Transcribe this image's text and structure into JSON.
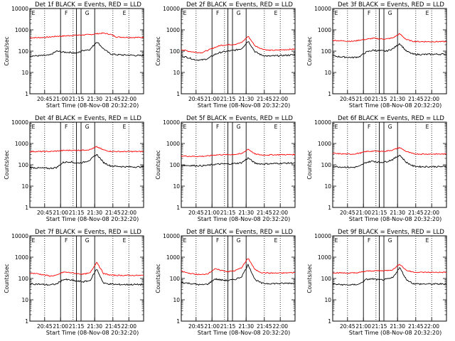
{
  "chart_data": [
    {
      "type": "line",
      "title": "Det 1f BLACK = Events, RED = LLD",
      "ylabel": "Counts/sec",
      "xlabel": "Start Time (08-Nov-08 20:32:20)",
      "x_ticks": [
        "20:45",
        "21:00",
        "21:15",
        "21:30",
        "21:45",
        "22:00"
      ],
      "y_ticks": [
        "1",
        "10",
        "100",
        "1000",
        "10000"
      ],
      "yscale": "log",
      "ylim": [
        1,
        10000
      ],
      "annotations": [
        "E",
        "F",
        "G",
        "E"
      ],
      "grid": "dotted vertical lines",
      "series": [
        {
          "color": "#ff0000",
          "values": [
            430,
            430,
            440,
            460,
            500,
            510,
            540,
            560,
            580,
            600,
            660,
            700,
            620,
            460,
            450,
            440,
            440,
            440
          ]
        },
        {
          "color": "#000000",
          "values": [
            60,
            60,
            62,
            65,
            100,
            90,
            88,
            80,
            110,
            120,
            280,
            130,
            75,
            68,
            66,
            65,
            62,
            62
          ]
        }
      ]
    },
    {
      "type": "line",
      "title": "Det 2f BLACK = Events, RED = LLD",
      "ylabel": "Counts/sec",
      "xlabel": "Start Time (08-Nov-08 20:32:20)",
      "x_ticks": [
        "20:45",
        "21:00",
        "21:15",
        "21:30",
        "21:45",
        "22:00"
      ],
      "y_ticks": [
        "1",
        "10",
        "100",
        "1000",
        "10000"
      ],
      "yscale": "log",
      "ylim": [
        1,
        10000
      ],
      "annotations": [
        "E",
        "F",
        "G",
        "E"
      ],
      "grid": "dotted vertical lines",
      "series": [
        {
          "color": "#ff0000",
          "values": [
            120,
            100,
            90,
            85,
            110,
            150,
            190,
            200,
            210,
            250,
            500,
            180,
            130,
            110,
            110,
            115,
            120,
            125
          ]
        },
        {
          "color": "#000000",
          "values": [
            60,
            50,
            40,
            38,
            45,
            70,
            90,
            100,
            110,
            130,
            300,
            95,
            65,
            58,
            60,
            62,
            65,
            68
          ]
        }
      ]
    },
    {
      "type": "line",
      "title": "Det 3f BLACK = Events, RED = LLD",
      "ylabel": "Counts/sec",
      "xlabel": "Start Time (08-Nov-08 20:32:20)",
      "x_ticks": [
        "20:45",
        "21:00",
        "21:15",
        "21:30",
        "21:45",
        "22:00"
      ],
      "y_ticks": [
        "1",
        "10",
        "100",
        "1000",
        "10000"
      ],
      "yscale": "log",
      "ylim": [
        1,
        10000
      ],
      "annotations": [
        "E",
        "F",
        "G",
        "E"
      ],
      "grid": "dotted vertical lines",
      "series": [
        {
          "color": "#ff0000",
          "values": [
            320,
            310,
            300,
            290,
            330,
            360,
            400,
            380,
            370,
            420,
            650,
            350,
            290,
            280,
            280,
            280,
            280,
            280
          ]
        },
        {
          "color": "#000000",
          "values": [
            60,
            55,
            52,
            50,
            55,
            90,
            110,
            105,
            100,
            130,
            230,
            100,
            72,
            70,
            70,
            72,
            72,
            72
          ]
        }
      ]
    },
    {
      "type": "line",
      "title": "Det 4f BLACK = Events, RED = LLD",
      "ylabel": "Counts/sec",
      "xlabel": "Start Time (08-Nov-08 20:32:20)",
      "x_ticks": [
        "20:45",
        "21:00",
        "21:15",
        "21:30",
        "21:45",
        "22:00"
      ],
      "y_ticks": [
        "1",
        "10",
        "100",
        "1000",
        "10000"
      ],
      "yscale": "log",
      "ylim": [
        1,
        10000
      ],
      "annotations": [
        "E",
        "F",
        "G",
        "E"
      ],
      "grid": "dotted vertical lines",
      "series": [
        {
          "color": "#ff0000",
          "values": [
            420,
            420,
            420,
            420,
            440,
            470,
            480,
            480,
            490,
            520,
            700,
            500,
            430,
            420,
            420,
            420,
            420,
            420
          ]
        },
        {
          "color": "#000000",
          "values": [
            75,
            72,
            70,
            68,
            75,
            130,
            140,
            120,
            130,
            170,
            310,
            130,
            90,
            85,
            82,
            80,
            80,
            80
          ]
        }
      ]
    },
    {
      "type": "line",
      "title": "Det 5f BLACK = Events, RED = LLD",
      "ylabel": "Counts/sec",
      "xlabel": "Start Time (08-Nov-08 20:32:20)",
      "x_ticks": [
        "20:45",
        "21:00",
        "21:15",
        "21:30",
        "21:45",
        "22:00"
      ],
      "y_ticks": [
        "1",
        "10",
        "100",
        "1000",
        "10000"
      ],
      "yscale": "log",
      "ylim": [
        1,
        10000
      ],
      "annotations": [
        "E",
        "F",
        "G",
        "E"
      ],
      "grid": "dotted vertical lines",
      "series": [
        {
          "color": "#ff0000",
          "values": [
            260,
            255,
            250,
            250,
            260,
            290,
            300,
            300,
            310,
            330,
            550,
            320,
            290,
            290,
            295,
            300,
            300,
            305
          ]
        },
        {
          "color": "#000000",
          "values": [
            95,
            93,
            92,
            90,
            95,
            105,
            110,
            110,
            115,
            125,
            210,
            120,
            110,
            112,
            115,
            118,
            120,
            122
          ]
        }
      ]
    },
    {
      "type": "line",
      "title": "Det 6f BLACK = Events, RED = LLD",
      "ylabel": "Counts/sec",
      "xlabel": "Start Time (08-Nov-08 20:32:20)",
      "x_ticks": [
        "20:45",
        "21:00",
        "21:15",
        "21:30",
        "21:45",
        "22:00"
      ],
      "y_ticks": [
        "1",
        "10",
        "100",
        "1000",
        "10000"
      ],
      "yscale": "log",
      "ylim": [
        1,
        10000
      ],
      "annotations": [
        "E",
        "F",
        "G",
        "E"
      ],
      "grid": "dotted vertical lines",
      "series": [
        {
          "color": "#ff0000",
          "values": [
            340,
            330,
            320,
            320,
            350,
            420,
            440,
            430,
            440,
            500,
            650,
            420,
            330,
            320,
            320,
            320,
            320,
            320
          ]
        },
        {
          "color": "#000000",
          "values": [
            85,
            80,
            78,
            75,
            85,
            130,
            150,
            130,
            140,
            180,
            290,
            130,
            88,
            82,
            82,
            82,
            82,
            82
          ]
        }
      ]
    },
    {
      "type": "line",
      "title": "Det 7f BLACK = Events, RED = LLD",
      "ylabel": "Counts/sec",
      "xlabel": "Start Time (08-Nov-08 20:32:20)",
      "x_ticks": [
        "20:45",
        "21:00",
        "21:15",
        "21:30",
        "21:45",
        "22:00"
      ],
      "y_ticks": [
        "1",
        "10",
        "100",
        "1000",
        "10000"
      ],
      "yscale": "log",
      "ylim": [
        1,
        10000
      ],
      "annotations": [
        "E",
        "F",
        "G",
        "E"
      ],
      "grid": "dotted vertical lines",
      "series": [
        {
          "color": "#ff0000",
          "values": [
            180,
            170,
            150,
            130,
            140,
            200,
            190,
            170,
            160,
            180,
            600,
            170,
            145,
            140,
            140,
            140,
            140,
            140
          ]
        },
        {
          "color": "#000000",
          "values": [
            55,
            55,
            52,
            50,
            55,
            90,
            85,
            75,
            70,
            80,
            280,
            60,
            55,
            52,
            52,
            52,
            52,
            52
          ]
        }
      ]
    },
    {
      "type": "line",
      "title": "Det 8f BLACK = Events, RED = LLD",
      "ylabel": "Counts/sec",
      "xlabel": "Start Time (08-Nov-08 20:32:20)",
      "x_ticks": [
        "20:45",
        "21:00",
        "21:15",
        "21:30",
        "21:45",
        "22:00"
      ],
      "y_ticks": [
        "1",
        "10",
        "100",
        "1000",
        "10000"
      ],
      "yscale": "log",
      "ylim": [
        1,
        10000
      ],
      "annotations": [
        "E",
        "F",
        "G",
        "E"
      ],
      "grid": "dotted vertical lines",
      "series": [
        {
          "color": "#ff0000",
          "values": [
            220,
            180,
            160,
            150,
            170,
            280,
            240,
            210,
            230,
            320,
            900,
            260,
            190,
            180,
            180,
            180,
            185,
            190
          ]
        },
        {
          "color": "#000000",
          "values": [
            65,
            60,
            55,
            50,
            55,
            95,
            85,
            80,
            90,
            120,
            450,
            90,
            60,
            58,
            58,
            58,
            60,
            60
          ]
        }
      ]
    },
    {
      "type": "line",
      "title": "Det 9f BLACK = Events, RED = LLD",
      "ylabel": "Counts/sec",
      "xlabel": "Start Time (08-Nov-08 20:32:20)",
      "x_ticks": [
        "20:45",
        "21:00",
        "21:15",
        "21:30",
        "21:45",
        "22:00"
      ],
      "y_ticks": [
        "1",
        "10",
        "100",
        "1000",
        "10000"
      ],
      "yscale": "log",
      "ylim": [
        1,
        10000
      ],
      "annotations": [
        "E",
        "F",
        "G",
        "E"
      ],
      "grid": "dotted vertical lines",
      "series": [
        {
          "color": "#ff0000",
          "values": [
            190,
            185,
            180,
            180,
            190,
            220,
            230,
            230,
            235,
            260,
            480,
            240,
            200,
            195,
            195,
            195,
            195,
            195
          ]
        },
        {
          "color": "#000000",
          "values": [
            55,
            52,
            50,
            50,
            55,
            90,
            95,
            85,
            90,
            110,
            330,
            90,
            58,
            55,
            55,
            55,
            55,
            55
          ]
        }
      ]
    }
  ]
}
